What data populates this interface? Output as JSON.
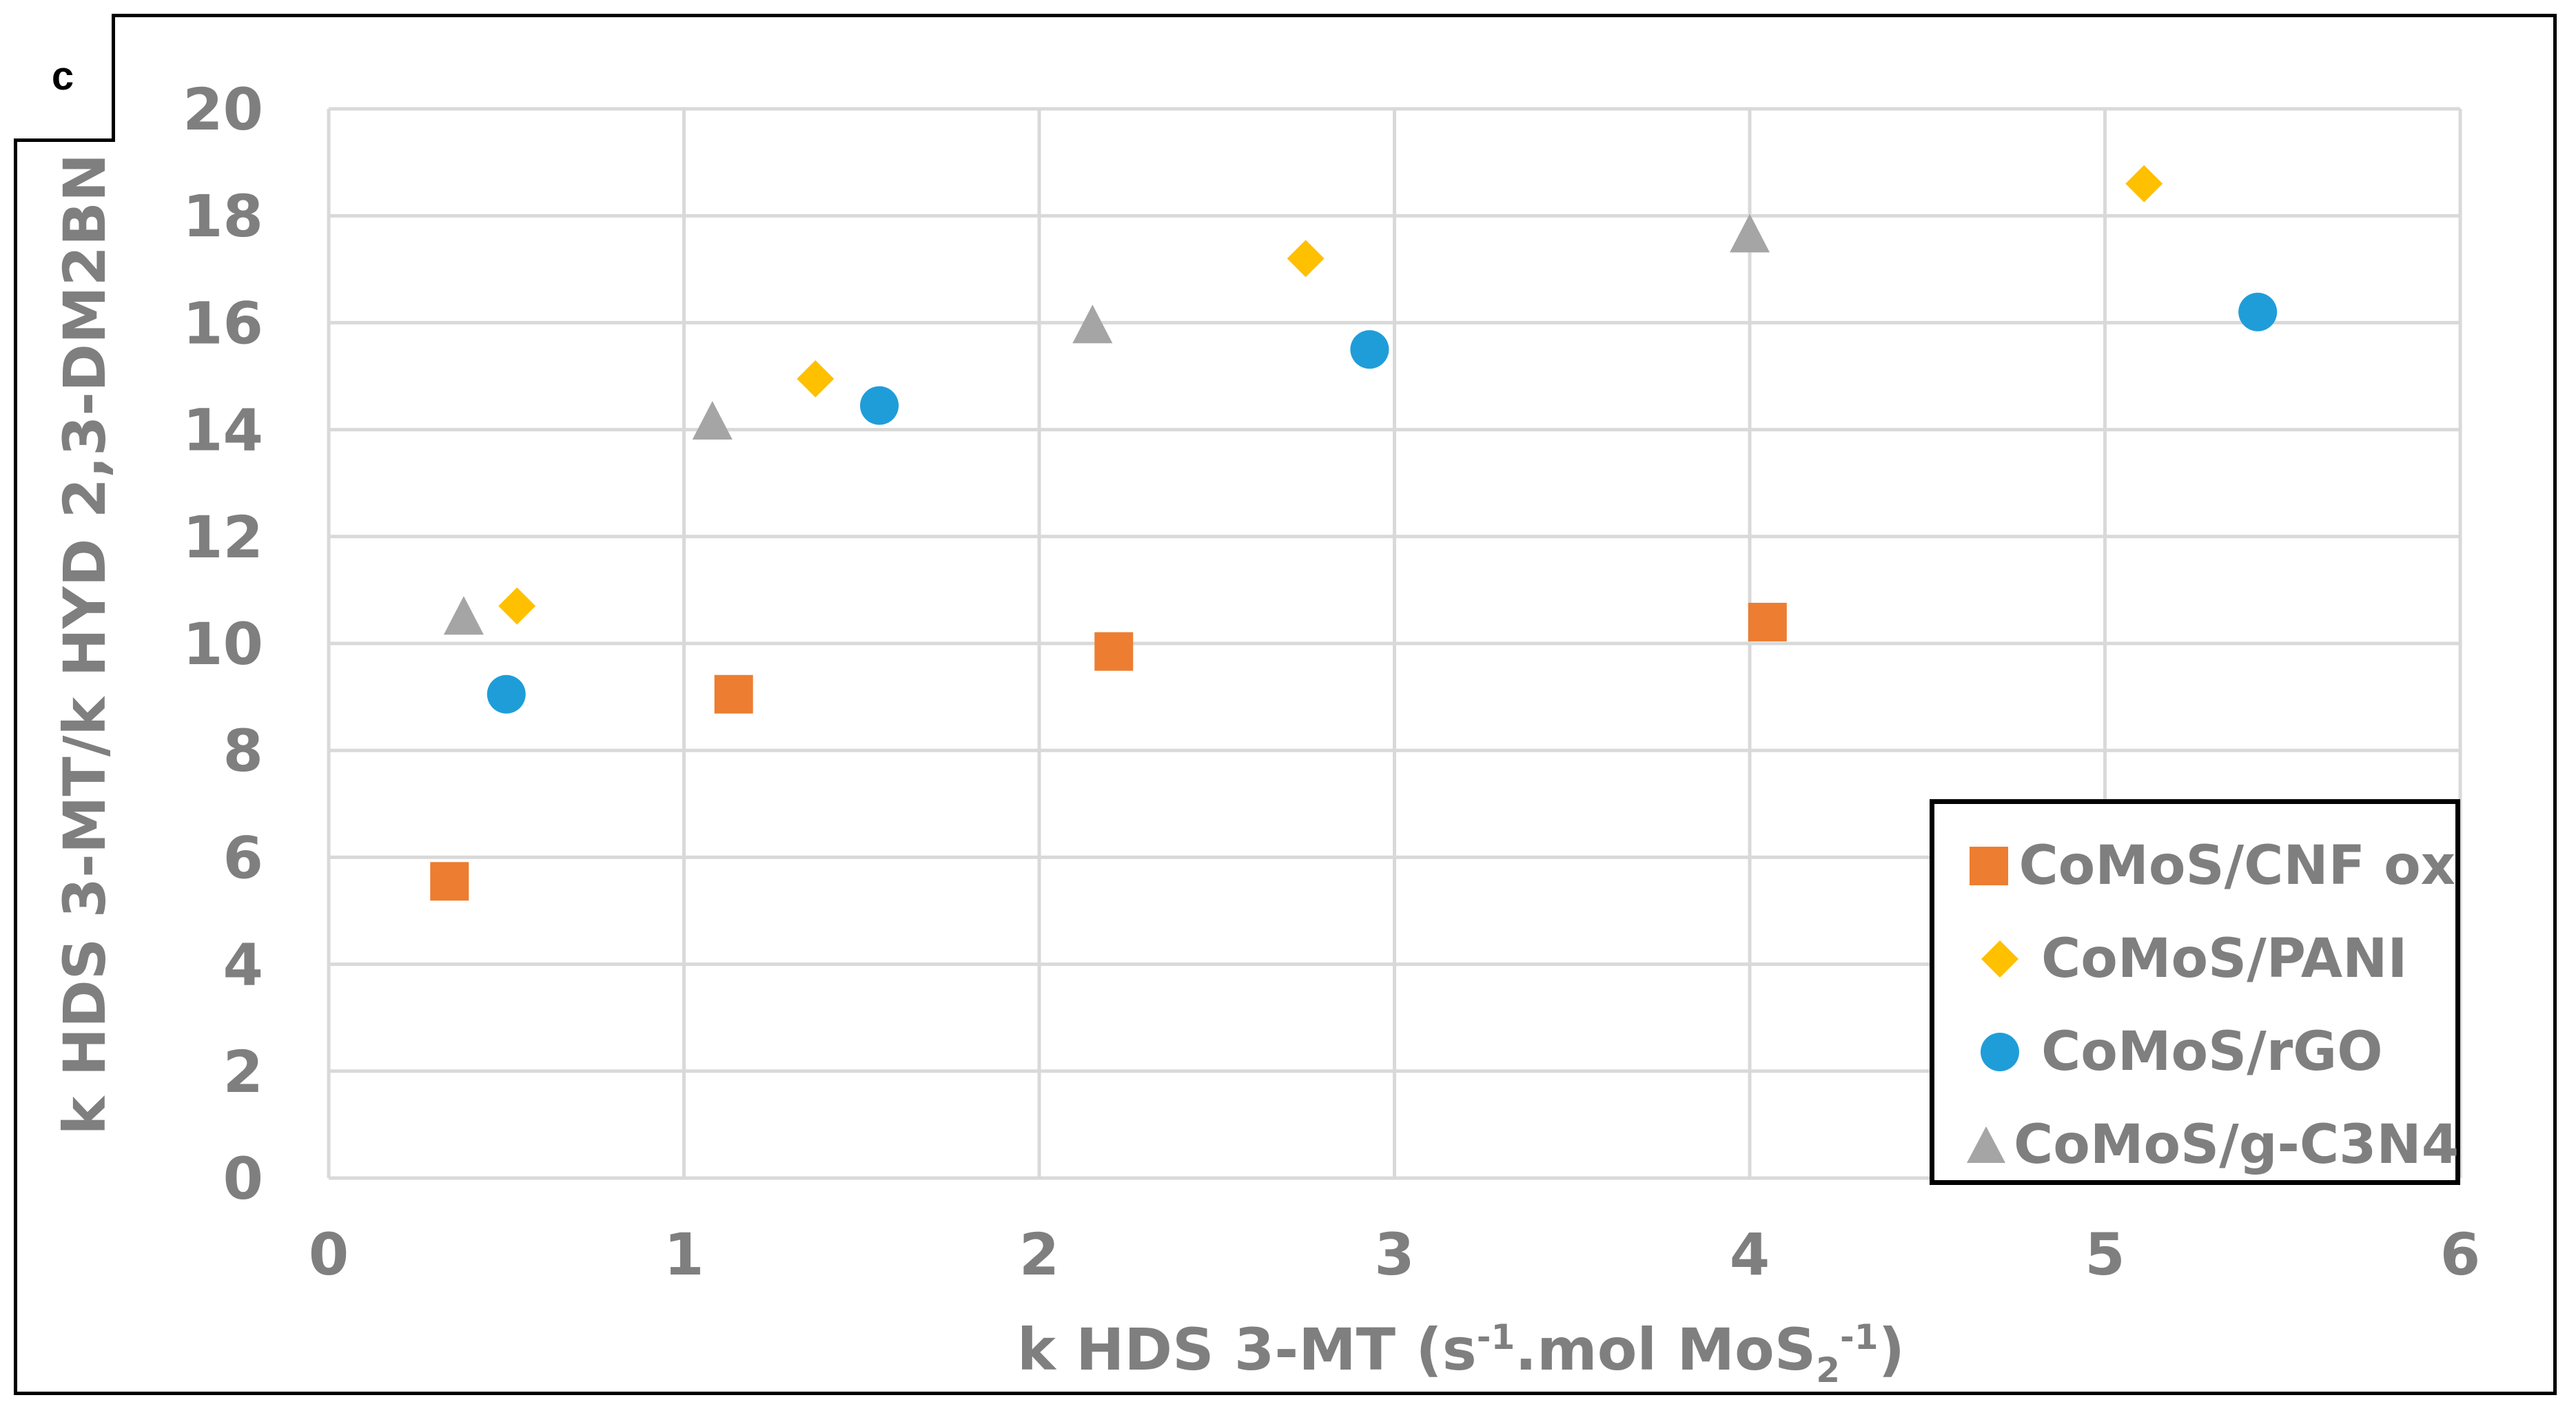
{
  "panel_label": "c",
  "chart_data": {
    "type": "scatter",
    "xlabel": "k HDS 3-MT (s-1.mol MoS2-1)",
    "xlabel_parts": [
      "k HDS 3-MT (s",
      "-1",
      ".mol MoS",
      "2",
      "-1",
      ")"
    ],
    "ylabel": "k HDS 3-MT/k HYD 2,3-DM2BN",
    "xlim": [
      0,
      6
    ],
    "ylim": [
      0,
      20
    ],
    "x_ticks": [
      "0",
      "1",
      "2",
      "3",
      "4",
      "5",
      "6"
    ],
    "y_ticks": [
      "0",
      "2",
      "4",
      "6",
      "8",
      "10",
      "12",
      "14",
      "16",
      "18",
      "20"
    ],
    "grid": true,
    "legend_position": "bottom-right",
    "series": [
      {
        "name": "CoMoS/CNF ox",
        "marker": "square",
        "color": "#ED7D31",
        "x": [
          0.34,
          1.14,
          2.21,
          4.05
        ],
        "y": [
          5.55,
          9.05,
          9.85,
          10.4
        ]
      },
      {
        "name": "CoMoS/PANI",
        "marker": "diamond",
        "color": "#FFC000",
        "x": [
          0.53,
          1.37,
          2.75,
          5.11
        ],
        "y": [
          10.7,
          14.95,
          17.2,
          18.6
        ]
      },
      {
        "name": "CoMoS/rGO",
        "marker": "circle",
        "color": "#1F9DD9",
        "x": [
          0.5,
          1.55,
          2.93,
          5.43
        ],
        "y": [
          9.05,
          14.45,
          15.5,
          16.2
        ]
      },
      {
        "name": "CoMoS/g-C3N4",
        "marker": "triangle",
        "color": "#A5A5A5",
        "x": [
          0.38,
          1.08,
          2.15,
          4.0
        ],
        "y": [
          10.5,
          14.15,
          15.95,
          17.65
        ]
      }
    ]
  }
}
